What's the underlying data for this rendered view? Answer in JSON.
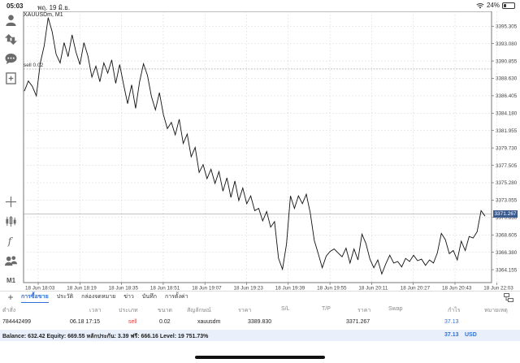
{
  "status_bar": {
    "time": "05:03",
    "date": "พฤ. 19 มิ.ย.",
    "battery": "24%",
    "battery_level": 0.24
  },
  "chart": {
    "symbol": "XAUUSDm, M1",
    "order_line_label": "sell 0.02",
    "current_price_tag": "3371.267",
    "toolbar_timeframe": "M1"
  },
  "chart_data": {
    "type": "line",
    "title": "",
    "xlabel": "",
    "ylabel": "",
    "ylim": [
      3362.5,
      3397.2
    ],
    "x_ticks": [
      "18 Jun 18:03",
      "18 Jun 18:19",
      "18 Jun 18:35",
      "18 Jun 18:51",
      "18 Jun 19:07",
      "18 Jun 19:23",
      "18 Jun 19:39",
      "18 Jun 19:55",
      "18 Jun 20:11",
      "18 Jun 20:27",
      "18 Jun 20:43",
      "18 Jun 22:03"
    ],
    "y_ticks": [
      3395.305,
      3393.08,
      3390.855,
      3388.63,
      3386.405,
      3384.18,
      3381.955,
      3379.73,
      3377.505,
      3375.28,
      3373.055,
      3370.83,
      3368.605,
      3366.38,
      3364.155
    ],
    "grid": true,
    "horizontal_lines": [
      {
        "label": "sell 0.02",
        "value": 3389.83
      },
      {
        "label": "3371.267",
        "value": 3371.267
      }
    ],
    "series": [
      {
        "values": [
          3387.0,
          3388.3,
          3387.6,
          3386.4,
          3390.6,
          3392.8,
          3396.4,
          3394.6,
          3391.7,
          3390.6,
          3393.2,
          3391.4,
          3394.2,
          3392.0,
          3390.4,
          3393.2,
          3391.5,
          3388.8,
          3390.2,
          3388.2,
          3390.6,
          3389.3,
          3391.0,
          3388.0,
          3390.4,
          3387.8,
          3385.4,
          3387.8,
          3384.8,
          3388.2,
          3390.5,
          3389.0,
          3386.3,
          3384.6,
          3386.8,
          3384.0,
          3382.2,
          3383.0,
          3381.4,
          3383.4,
          3380.3,
          3381.5,
          3378.6,
          3379.8,
          3376.6,
          3377.6,
          3375.8,
          3377.0,
          3375.2,
          3376.7,
          3374.2,
          3375.9,
          3373.4,
          3375.5,
          3373.0,
          3374.6,
          3372.6,
          3373.6,
          3371.7,
          3372.0,
          3370.4,
          3371.6,
          3369.6,
          3370.3,
          3365.6,
          3364.2,
          3367.4,
          3373.6,
          3372.0,
          3373.6,
          3372.6,
          3373.8,
          3371.4,
          3367.9,
          3366.2,
          3364.4,
          3365.9,
          3366.5,
          3366.8,
          3366.3,
          3365.8,
          3366.9,
          3365.0,
          3366.8,
          3365.4,
          3368.7,
          3367.5,
          3365.5,
          3364.4,
          3365.4,
          3363.6,
          3364.9,
          3366.0,
          3365.0,
          3365.2,
          3364.5,
          3365.6,
          3365.2,
          3366.0,
          3365.3,
          3365.5,
          3364.7,
          3365.4,
          3365.0,
          3366.3,
          3368.8,
          3368.0,
          3366.2,
          3366.6,
          3365.4,
          3367.8,
          3366.6,
          3368.4,
          3368.2,
          3369.0,
          3371.7,
          3371.0
        ]
      }
    ]
  },
  "tabs": [
    "การซื้อขาย",
    "ประวัติ",
    "กล่องจดหมาย",
    "ข่าว",
    "บันทึก",
    "การตั้งค่า"
  ],
  "table": {
    "headers": [
      "ตำสั่ง",
      "เวลา",
      "ประเภท",
      "ขนาด",
      "สัญลักษณ์",
      "ราคา",
      "S/L",
      "T/P",
      "ราคา",
      "Swap",
      "กำไร",
      "หมายเหตุ"
    ],
    "rows": [
      {
        "order": "784442499",
        "time": "06.18 17:15",
        "type": "sell",
        "volume": "0.02",
        "symbol": "xauusdm",
        "open_price": "3389.830",
        "price": "3371.267",
        "profit": "37.13"
      }
    ]
  },
  "balance": {
    "text": "Balance: 632.42 Equity: 669.55 หลักประกัน: 3.39 ฟรี: 666.16 Level: 19 751.73%",
    "profit": "37.13",
    "currency": "USD"
  },
  "colors": {
    "accent": "#2e6fd6",
    "sell": "#e23b3b",
    "price_tag": "#3b5b8f"
  },
  "icons": {
    "toolbar": [
      "account-icon",
      "trade-icon",
      "chat-icon",
      "new-order-icon",
      "crosshair-icon",
      "indicators-icon",
      "function-icon",
      "objects-icon"
    ],
    "tab_right": "layout-icon"
  }
}
